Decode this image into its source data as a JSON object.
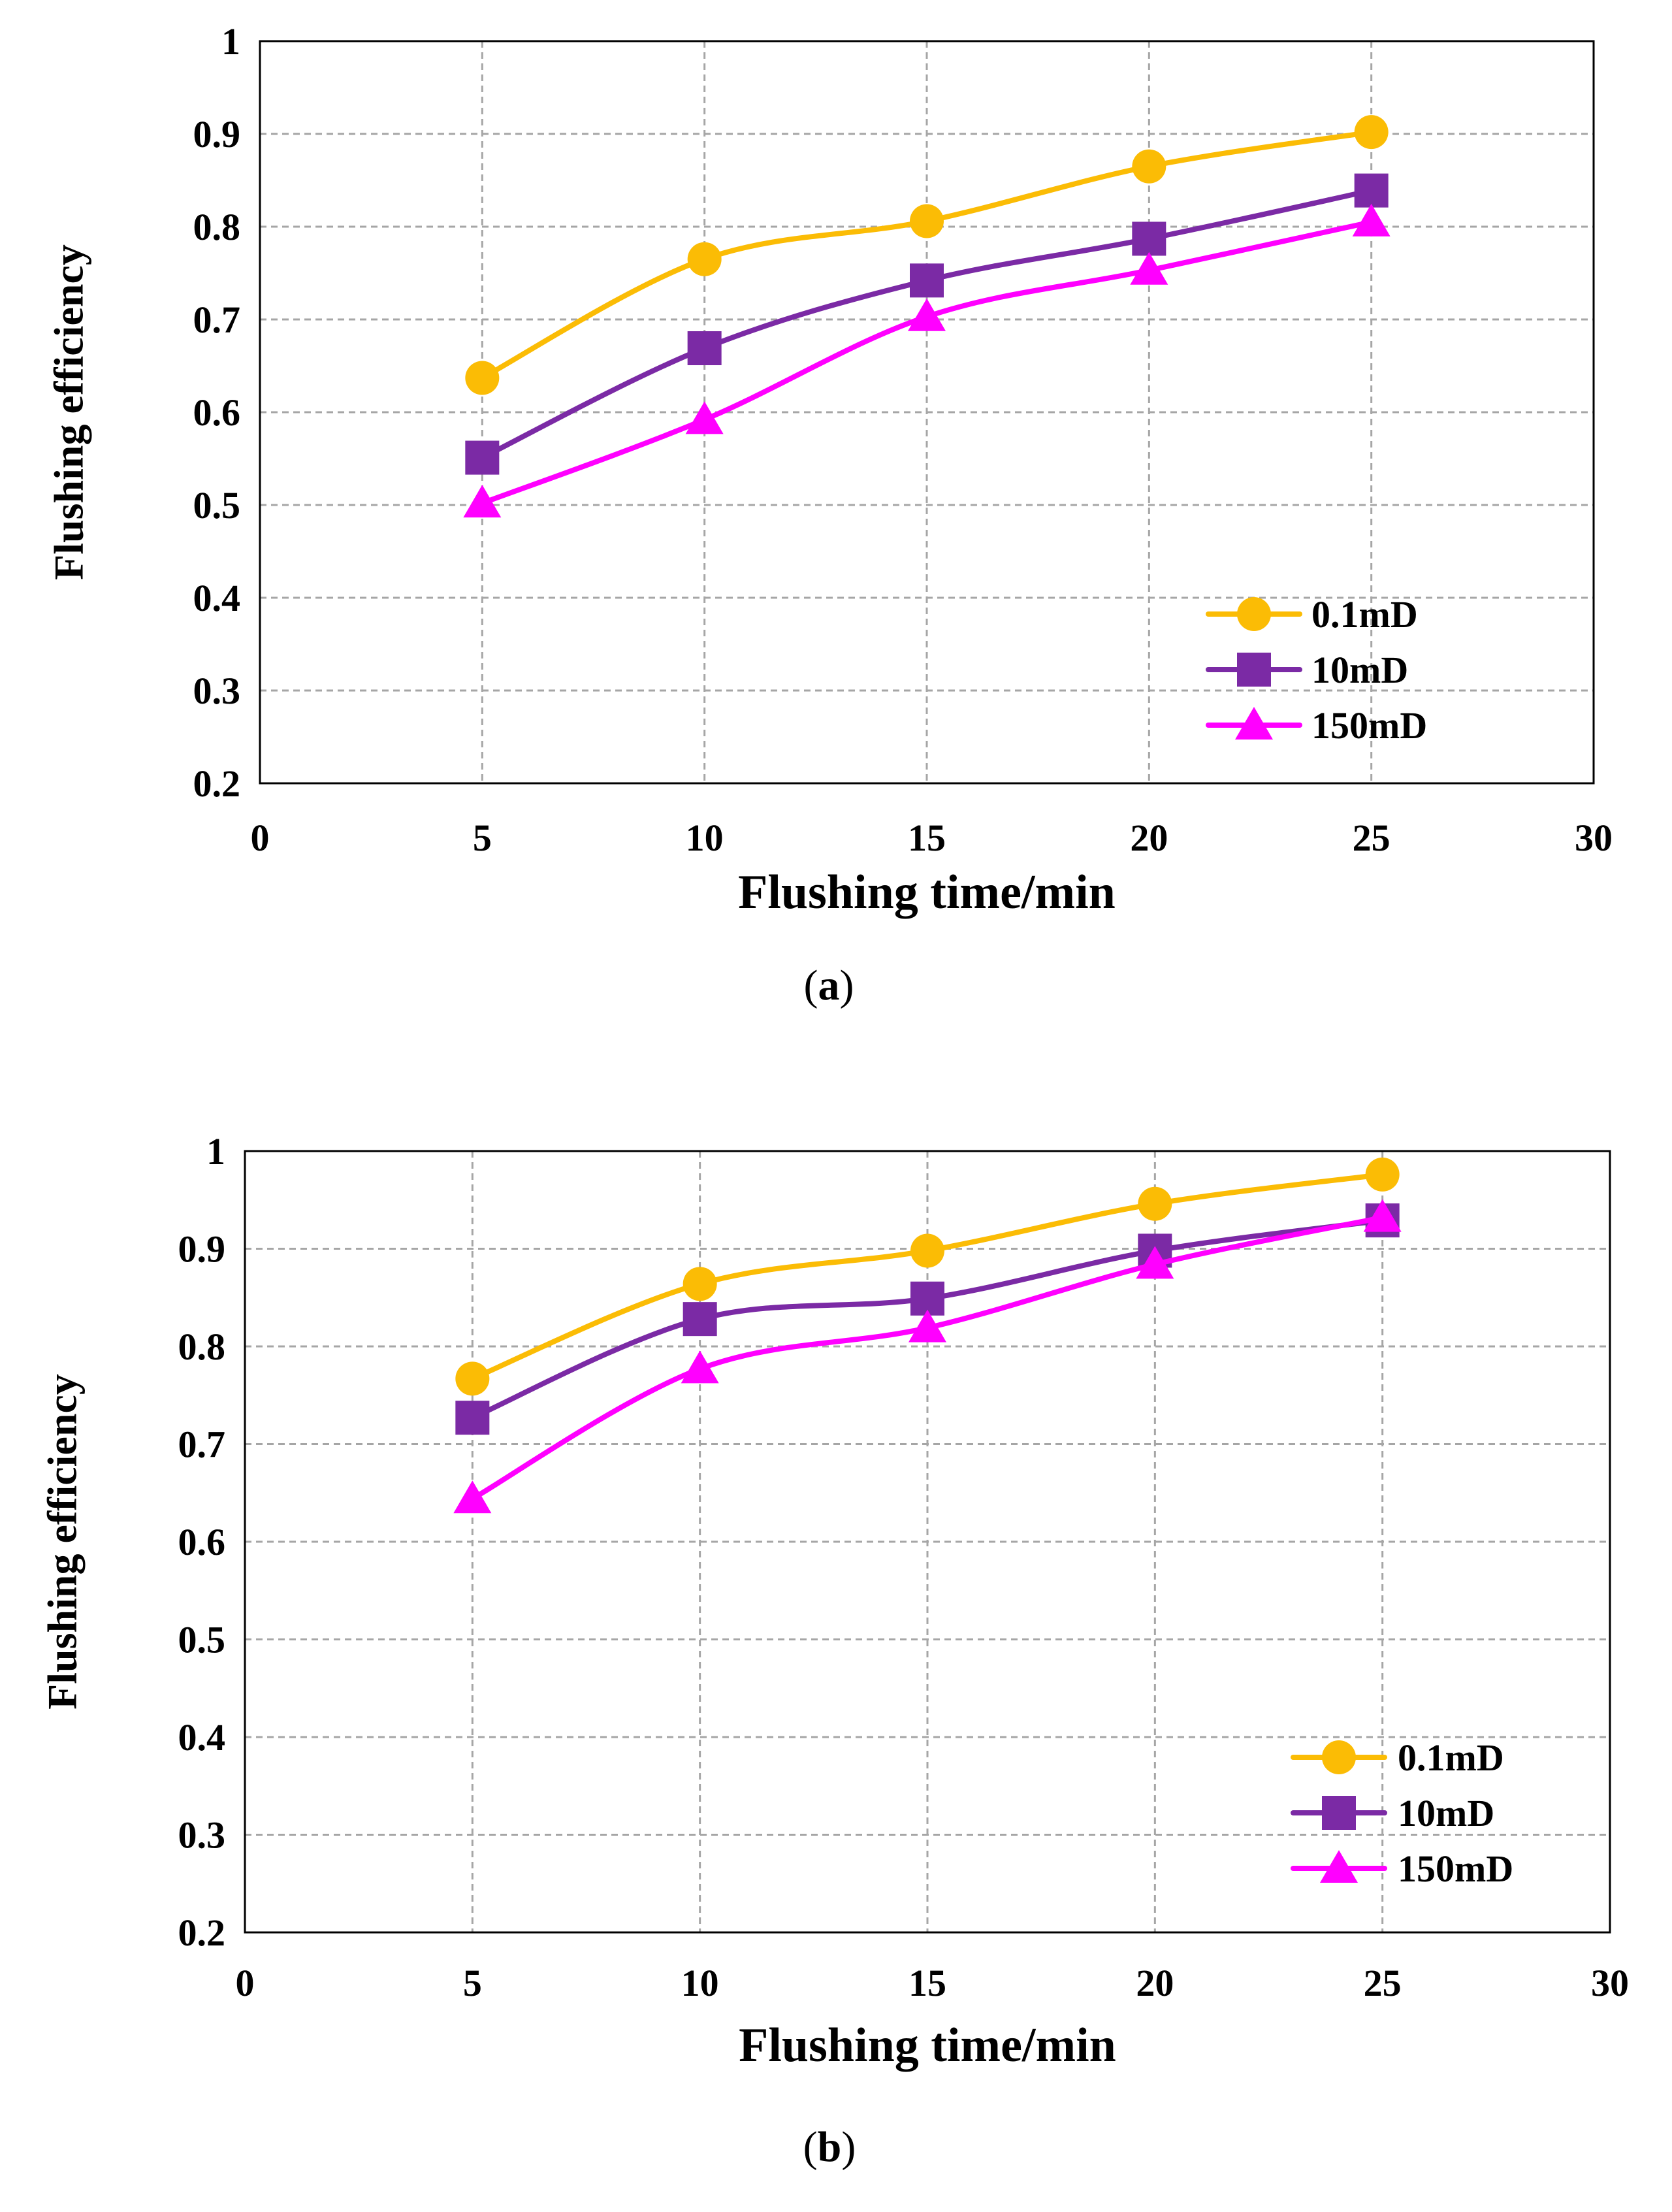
{
  "chart_data": [
    {
      "type": "line",
      "panel": "(a)",
      "caption_letter": "a",
      "x": [
        5,
        10,
        15,
        20,
        25
      ],
      "xlabel": "Flushing time/min",
      "ylabel": "Flushing efficiency",
      "xlim": [
        0,
        30
      ],
      "ylim": [
        0.2,
        1
      ],
      "xticks": [
        0,
        5,
        10,
        15,
        20,
        25,
        30
      ],
      "xtick_labels": [
        "0",
        "5",
        "10",
        "15",
        "20",
        "25",
        "30"
      ],
      "yticks": [
        0.2,
        0.3,
        0.4,
        0.5,
        0.6,
        0.7,
        0.8,
        0.9,
        1
      ],
      "ytick_labels": [
        "0.2",
        "0.3",
        "0.4",
        "0.5",
        "0.6",
        "0.7",
        "0.8",
        "0.9",
        "1"
      ],
      "grid": true,
      "legend_position": "lower-right",
      "series": [
        {
          "name": "0.1mD",
          "marker": "circle",
          "color": "#fbbc05",
          "values": [
            0.637,
            0.765,
            0.806,
            0.865,
            0.902
          ]
        },
        {
          "name": "10mD",
          "marker": "square",
          "color": "#7b2aa5",
          "values": [
            0.551,
            0.669,
            0.742,
            0.787,
            0.839
          ]
        },
        {
          "name": "150mD",
          "marker": "triangle",
          "color": "#ff00ff",
          "values": [
            0.502,
            0.592,
            0.703,
            0.753,
            0.805
          ]
        }
      ]
    },
    {
      "type": "line",
      "panel": "(b)",
      "caption_letter": "b",
      "x": [
        5,
        10,
        15,
        20,
        25
      ],
      "xlabel": "Flushing time/min",
      "ylabel": "Flushing efficiency",
      "xlim": [
        0,
        30
      ],
      "ylim": [
        0.2,
        1
      ],
      "xticks": [
        0,
        5,
        10,
        15,
        20,
        25,
        30
      ],
      "xtick_labels": [
        "0",
        "5",
        "10",
        "15",
        "20",
        "25",
        "30"
      ],
      "yticks": [
        0.2,
        0.3,
        0.4,
        0.5,
        0.6,
        0.7,
        0.8,
        0.9,
        1
      ],
      "ytick_labels": [
        "0.2",
        "0.3",
        "0.4",
        "0.5",
        "0.6",
        "0.7",
        "0.8",
        "0.9",
        "1"
      ],
      "grid": true,
      "legend_position": "lower-right",
      "series": [
        {
          "name": "0.1mD",
          "marker": "circle",
          "color": "#fbbc05",
          "values": [
            0.767,
            0.864,
            0.898,
            0.946,
            0.976
          ]
        },
        {
          "name": "10mD",
          "marker": "square",
          "color": "#7b2aa5",
          "values": [
            0.727,
            0.828,
            0.849,
            0.898,
            0.929
          ]
        },
        {
          "name": "150mD",
          "marker": "triangle",
          "color": "#ff00ff",
          "values": [
            0.644,
            0.777,
            0.819,
            0.884,
            0.932
          ]
        }
      ]
    }
  ]
}
